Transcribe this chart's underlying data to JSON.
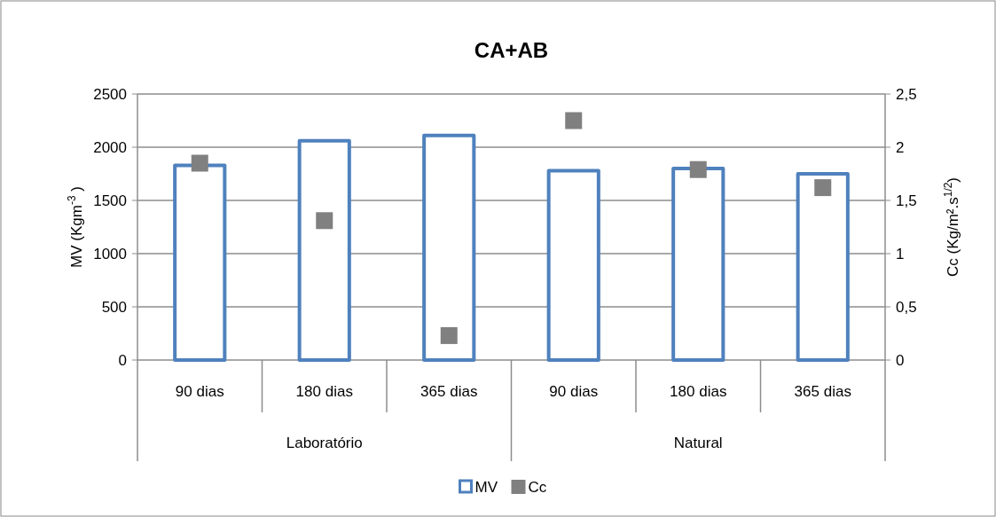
{
  "chart_data": {
    "type": "bar",
    "title": "CA+AB",
    "ylabel": "MV (Kgm$^{-3}$ )",
    "y2label": "Cc (Kg/m².s$^{1/2}$)",
    "categories": [
      "90 dias",
      "180 dias",
      "365 dias",
      "90 dias",
      "180 dias",
      "365 dias"
    ],
    "annotations": [
      "Laboratório",
      "Natural"
    ],
    "series": [
      {
        "name": "MV",
        "color": "#4f81bd",
        "values": [
          1830,
          2060,
          2110,
          1780,
          1800,
          1750
        ]
      },
      {
        "name": "Cc",
        "type": "scatter",
        "axis": "y2",
        "marker": "square",
        "color": "#808080",
        "values": [
          1.85,
          1.31,
          0.23,
          2.25,
          1.79,
          1.62
        ]
      }
    ],
    "ylim": [
      0,
      2500
    ],
    "yticks": [
      0,
      500,
      1000,
      1500,
      2000,
      2500
    ],
    "y2lim": [
      0,
      2.5
    ],
    "y2ticks": [
      {
        "value": 0,
        "label": "0"
      },
      {
        "value": 0.5,
        "label": "0,5"
      },
      {
        "value": 1,
        "label": "1"
      },
      {
        "value": 1.5,
        "label": "1,5"
      },
      {
        "value": 2,
        "label": "2"
      },
      {
        "value": 2.5,
        "label": "2,5"
      }
    ],
    "grid": "y",
    "legend": "bottom"
  }
}
